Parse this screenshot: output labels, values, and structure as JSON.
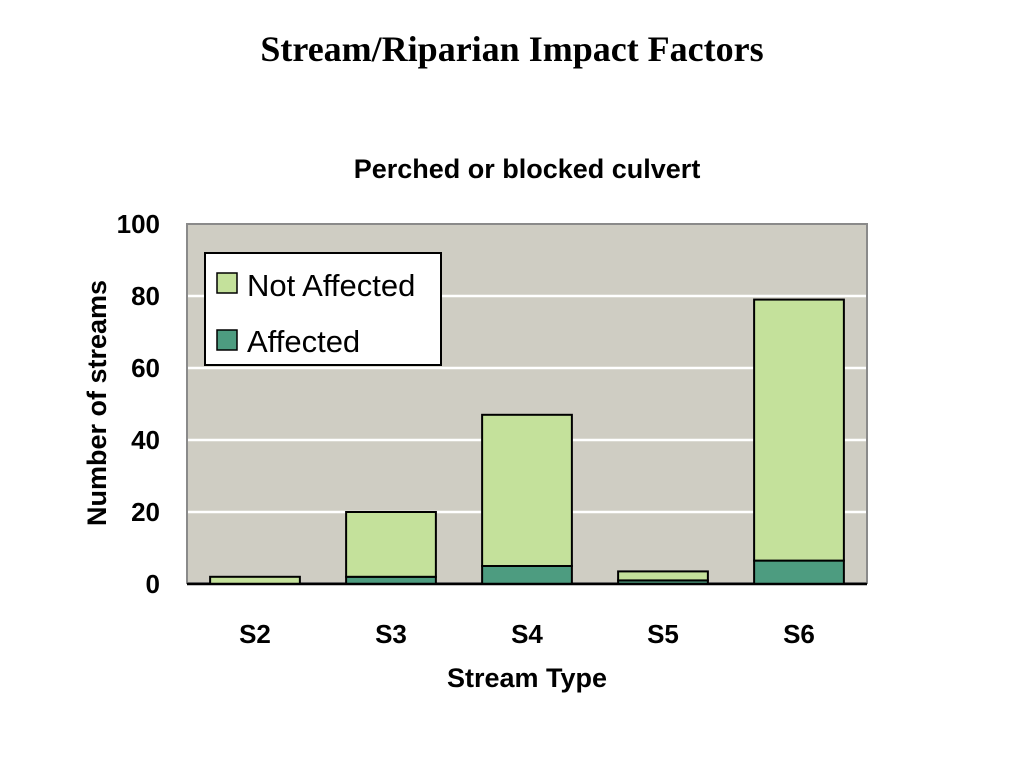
{
  "slide": {
    "title": "Stream/Riparian Impact Factors"
  },
  "colors": {
    "plot_bg": "#cfcdc3",
    "gridline": "#ffffff",
    "affected": "#4d9c80",
    "not_affected": "#c4e19b",
    "outline": "#000000"
  },
  "chart_data": {
    "type": "bar",
    "stacked": true,
    "title": "Perched or blocked culvert",
    "xlabel": "Stream Type",
    "ylabel": "Number of streams",
    "categories": [
      "S2",
      "S3",
      "S4",
      "S5",
      "S6"
    ],
    "series": [
      {
        "name": "Affected",
        "values": [
          0,
          2,
          5,
          1,
          6.5
        ]
      },
      {
        "name": "Not Affected",
        "values": [
          2,
          18,
          42,
          2.5,
          72.5
        ]
      }
    ],
    "ylim": [
      0,
      100
    ],
    "yticks": [
      0,
      20,
      40,
      60,
      80,
      100
    ],
    "grid": true,
    "legend": {
      "placement": "top-left",
      "entries": [
        "Not Affected",
        "Affected"
      ]
    }
  }
}
